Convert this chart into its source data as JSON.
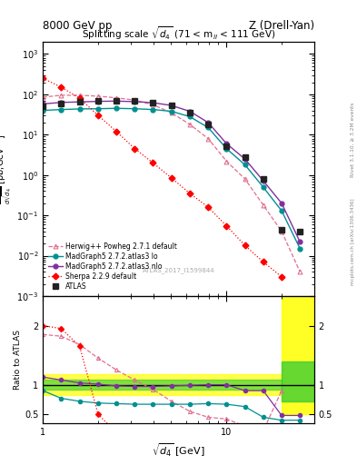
{
  "title_left": "8000 GeV pp",
  "title_right": "Z (Drell-Yan)",
  "main_title": "Splitting scale $\\sqrt{\\overline{d_4}}$ (71 < m$_{ll}$ < 111 GeV)",
  "watermark": "ATLAS_2017_I1599844",
  "right_label1": "mcplots.cern.ch [arXiv:1306.3436]",
  "right_label2": "Rivet 3.1.10, ≥ 3.2M events",
  "atlas_x": [
    1.0,
    1.26,
    1.585,
    2.0,
    2.512,
    3.162,
    3.981,
    5.012,
    6.31,
    7.943,
    10.0,
    12.589,
    15.849,
    19.953,
    25.119
  ],
  "atlas_y": [
    50.0,
    60.0,
    65.0,
    68.0,
    70.0,
    68.0,
    62.0,
    52.0,
    35.0,
    18.0,
    5.2,
    2.8,
    0.8,
    0.045,
    0.04
  ],
  "herwig_x": [
    1.0,
    1.26,
    1.585,
    2.0,
    2.512,
    3.162,
    3.981,
    5.012,
    6.31,
    7.943,
    10.0,
    12.589,
    15.849,
    19.953,
    25.119
  ],
  "herwig_y": [
    85.0,
    95.0,
    95.0,
    90.0,
    82.0,
    72.0,
    55.0,
    35.0,
    18.0,
    8.0,
    2.2,
    0.8,
    0.18,
    0.04,
    0.004
  ],
  "mg_lo_x": [
    1.0,
    1.26,
    1.585,
    2.0,
    2.512,
    3.162,
    3.981,
    5.012,
    6.31,
    7.943,
    10.0,
    12.589,
    15.849,
    19.953,
    25.119
  ],
  "mg_lo_y": [
    40.0,
    42.0,
    43.5,
    44.0,
    45.0,
    44.0,
    42.0,
    38.0,
    28.0,
    15.0,
    4.5,
    1.8,
    0.5,
    0.13,
    0.015
  ],
  "mg_nlo_x": [
    1.0,
    1.26,
    1.585,
    2.0,
    2.512,
    3.162,
    3.981,
    5.012,
    6.31,
    7.943,
    10.0,
    12.589,
    15.849,
    19.953,
    25.119
  ],
  "mg_nlo_y": [
    58.0,
    63.0,
    65.0,
    67.0,
    68.0,
    66.0,
    62.0,
    53.0,
    38.0,
    20.0,
    6.0,
    2.5,
    0.72,
    0.2,
    0.022
  ],
  "sherpa_x": [
    1.0,
    1.26,
    1.585,
    2.0,
    2.512,
    3.162,
    3.981,
    5.012,
    6.31,
    7.943,
    10.0,
    12.589,
    15.849,
    19.953
  ],
  "sherpa_y": [
    250.0,
    150.0,
    80.0,
    30.0,
    12.0,
    4.5,
    2.0,
    0.85,
    0.35,
    0.16,
    0.055,
    0.018,
    0.007,
    0.003
  ],
  "atlas_color": "#222222",
  "herwig_color": "#e07090",
  "mg_lo_color": "#009090",
  "mg_nlo_color": "#8030a0",
  "sherpa_color": "#ff0000",
  "ratio_x": [
    1.0,
    1.26,
    1.585,
    2.0,
    2.512,
    3.162,
    3.981,
    5.012,
    6.31,
    7.943,
    10.0,
    12.589,
    15.849,
    19.953,
    25.119
  ],
  "ratio_herwig_y": [
    1.85,
    1.82,
    1.68,
    1.45,
    1.25,
    1.08,
    0.92,
    0.72,
    0.55,
    0.45,
    0.42,
    0.3,
    0.22,
    0.9,
    null
  ],
  "ratio_mg_lo_y": [
    0.9,
    0.77,
    0.72,
    0.69,
    0.68,
    0.67,
    0.67,
    0.67,
    0.67,
    0.68,
    0.67,
    0.63,
    0.45,
    0.4,
    0.4
  ],
  "ratio_mg_nlo_y": [
    1.13,
    1.08,
    1.03,
    1.01,
    0.98,
    0.97,
    0.97,
    0.98,
    0.99,
    1.0,
    1.0,
    0.9,
    0.9,
    0.48,
    0.48
  ],
  "ratio_sherpa_y": [
    2.0,
    1.95,
    1.65,
    0.5,
    0.19,
    0.072,
    0.038,
    0.018,
    0.011,
    0.01,
    0.012,
    0.007,
    0.009,
    0.07
  ],
  "band_yellow_lo": 0.82,
  "band_yellow_hi": 1.18,
  "band_green_lo": 0.92,
  "band_green_hi": 1.08,
  "band_last_yellow_lo": 0.5,
  "band_last_yellow_hi": 2.5,
  "band_last_green_lo": 0.72,
  "band_last_green_hi": 1.4,
  "band_last_x_start": 20.0,
  "xlim": [
    1.0,
    30.0
  ],
  "ylim_main": [
    0.001,
    2000.0
  ],
  "ylim_ratio": [
    0.35,
    2.5
  ],
  "ratio_yticks": [
    0.5,
    1.0,
    2.0
  ],
  "ratio_yticklabels": [
    "0.5",
    "1",
    "2"
  ]
}
